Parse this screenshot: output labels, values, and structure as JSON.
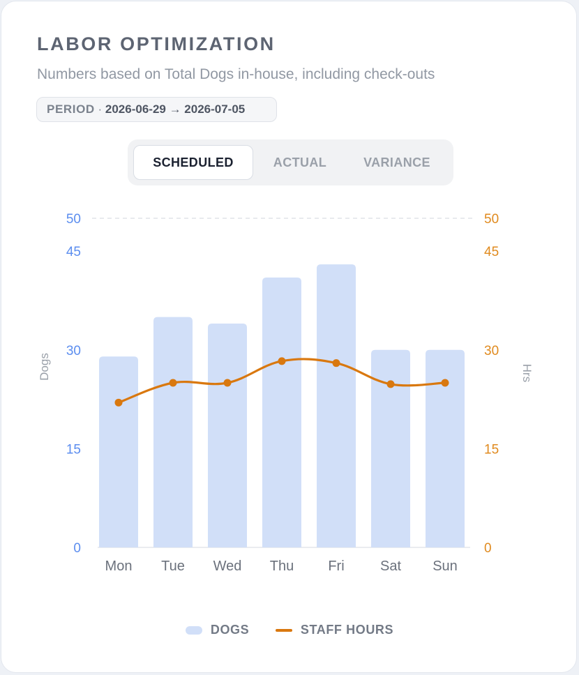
{
  "header": {
    "title": "LABOR OPTIMIZATION",
    "subtitle": "Numbers based on Total Dogs in-house, including check-outs",
    "period_label": "PERIOD",
    "period_separator": " · ",
    "period_value": "2026-06-29 → 2026-07-05"
  },
  "tabs": [
    {
      "label": "SCHEDULED",
      "active": true
    },
    {
      "label": "ACTUAL",
      "active": false
    },
    {
      "label": "VARIANCE",
      "active": false
    }
  ],
  "legend": {
    "dogs": "DOGS",
    "staff_hours": "STAFF HOURS"
  },
  "colors": {
    "bar": "#d1dff8",
    "line": "#d9780f",
    "left_axis": "#5b8def",
    "right_axis": "#e08a1e",
    "axis_title": "#9aa0a9",
    "category": "#6b717c"
  },
  "chart_data": {
    "type": "bar",
    "categories": [
      "Mon",
      "Tue",
      "Wed",
      "Thu",
      "Fri",
      "Sat",
      "Sun"
    ],
    "series": [
      {
        "name": "DOGS",
        "type": "bar",
        "axis": "left",
        "values": [
          29,
          35,
          34,
          41,
          43,
          30,
          30
        ]
      },
      {
        "name": "STAFF HOURS",
        "type": "line",
        "axis": "right",
        "values": [
          22,
          25,
          25,
          28.3,
          28,
          24.8,
          25
        ]
      }
    ],
    "ylabel_left": "Dogs",
    "ylabel_right": "Hrs",
    "ylim_left": [
      0,
      50
    ],
    "ylim_right": [
      0,
      50
    ],
    "yticks_left": [
      0,
      15,
      30,
      45,
      50
    ],
    "yticks_right": [
      0,
      15,
      30,
      45,
      50
    ],
    "grid": "dashed line at 50 only",
    "legend_position": "bottom-center"
  }
}
